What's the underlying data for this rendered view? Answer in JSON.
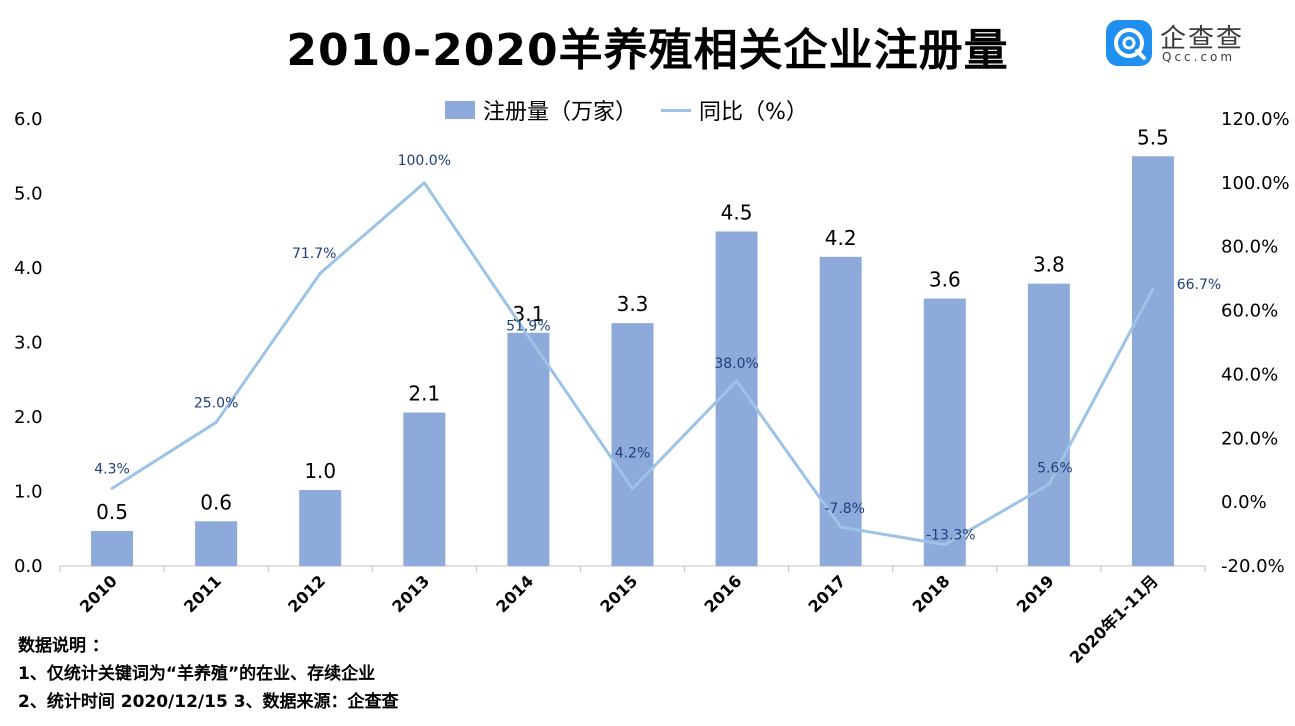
{
  "title": "2010-2020羊养殖相关企业注册量",
  "logo": {
    "name": "企查查",
    "sub": "Qcc.com"
  },
  "legend": {
    "bar": "注册量（万家）",
    "line": "同比（%）"
  },
  "colors": {
    "bar": "#8eaadb",
    "line": "#9dc3e6",
    "pct_label": "#1f3f7a"
  },
  "chart_data": {
    "type": "bar+line",
    "title": "2010-2020羊养殖相关企业注册量",
    "categories": [
      "2010",
      "2011",
      "2012",
      "2013",
      "2014",
      "2015",
      "2016",
      "2017",
      "2018",
      "2019",
      "2020年1-11月"
    ],
    "series": [
      {
        "name": "注册量（万家）",
        "type": "bar",
        "axis": "left",
        "values": [
          0.5,
          0.6,
          1.0,
          2.1,
          3.1,
          3.3,
          4.5,
          4.2,
          3.6,
          3.8,
          5.5
        ],
        "labels": [
          "0.5",
          "0.6",
          "1.0",
          "2.1",
          "3.1",
          "3.3",
          "4.5",
          "4.2",
          "3.6",
          "3.8",
          "5.5"
        ],
        "bar_heights": [
          0.47,
          0.6,
          1.02,
          2.06,
          3.13,
          3.26,
          4.49,
          4.15,
          3.59,
          3.79,
          5.5
        ]
      },
      {
        "name": "同比（%）",
        "type": "line",
        "axis": "right",
        "values": [
          4.3,
          25.0,
          71.7,
          100.0,
          51.9,
          4.2,
          38.0,
          -7.8,
          -13.3,
          5.6,
          66.7
        ],
        "labels": [
          "4.3%",
          "25.0%",
          "71.7%",
          "100.0%",
          "51.9%",
          "4.2%",
          "38.0%",
          "-7.8%",
          "-13.3%",
          "5.6%",
          "66.7%"
        ]
      }
    ],
    "y_left": {
      "range": [
        0,
        6
      ],
      "ticks": [
        "0.0",
        "1.0",
        "2.0",
        "3.0",
        "4.0",
        "5.0",
        "6.0"
      ]
    },
    "y_right": {
      "range": [
        -20,
        120
      ],
      "ticks": [
        "-20.0%",
        "0.0%",
        "20.0%",
        "40.0%",
        "60.0%",
        "80.0%",
        "100.0%",
        "120.0%"
      ]
    }
  },
  "notes": {
    "heading": "数据说明 ：",
    "line1": "1、仅统计关键词为“羊养殖”的在业、存续企业",
    "line2": "2、统计时间  2020/12/15      3、数据来源：企查查"
  }
}
